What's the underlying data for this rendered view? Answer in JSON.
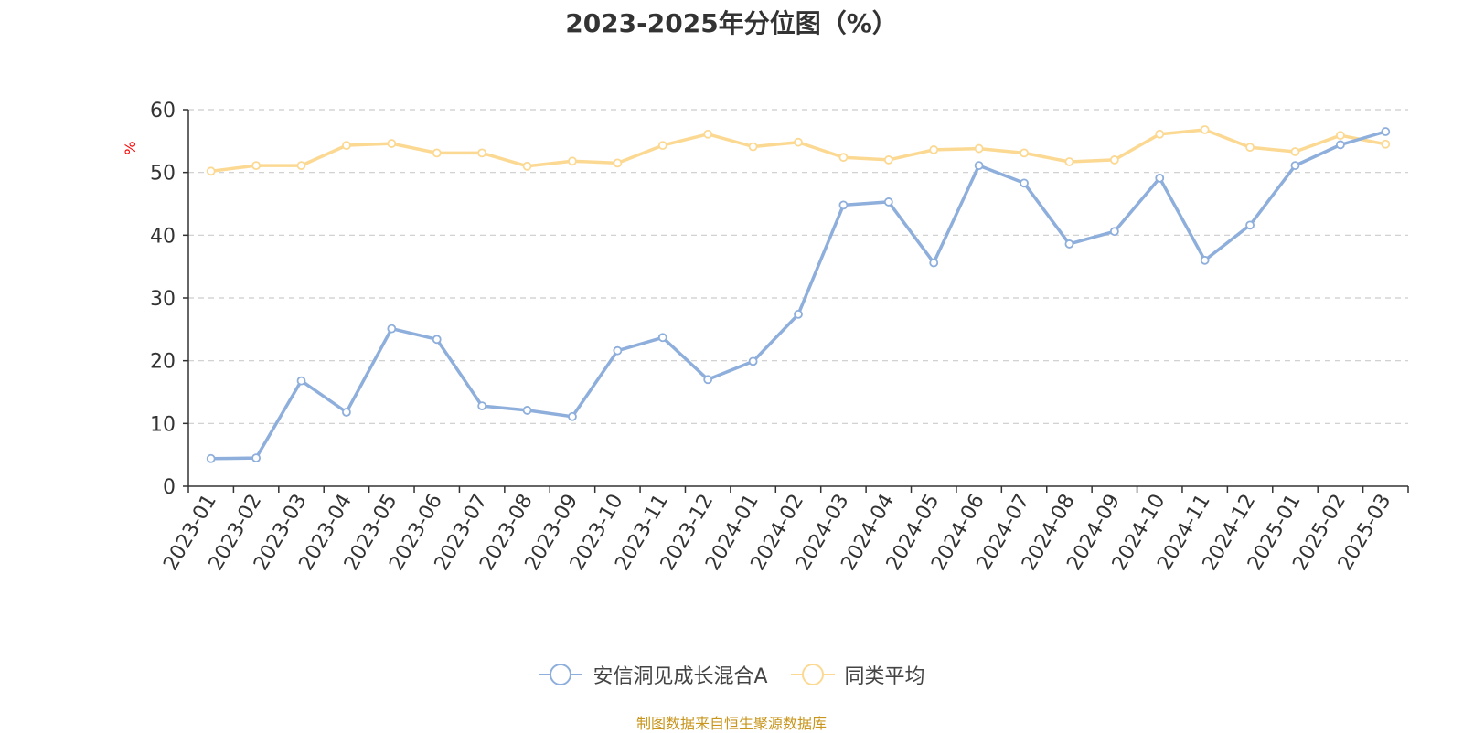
{
  "chart_data": {
    "type": "line",
    "title": "2023-2025年分位图（%）",
    "ylabel": "%",
    "xlabel": "",
    "ylim": [
      0,
      60
    ],
    "yticks": [
      0,
      10,
      20,
      30,
      40,
      50,
      60
    ],
    "grid": true,
    "legend_position": "bottom",
    "categories": [
      "2023-01",
      "2023-02",
      "2023-03",
      "2023-04",
      "2023-05",
      "2023-06",
      "2023-07",
      "2023-08",
      "2023-09",
      "2023-10",
      "2023-11",
      "2023-12",
      "2024-01",
      "2024-02",
      "2024-03",
      "2024-04",
      "2024-05",
      "2024-06",
      "2024-07",
      "2024-08",
      "2024-09",
      "2024-10",
      "2024-11",
      "2024-12",
      "2025-01",
      "2025-02",
      "2025-03"
    ],
    "series": [
      {
        "name": "安信洞见成长混合A",
        "color": "#8eaedb",
        "values": [
          4.4,
          4.5,
          16.8,
          11.8,
          25.1,
          23.4,
          12.8,
          12.1,
          11.1,
          21.6,
          23.7,
          17.0,
          19.9,
          27.4,
          44.8,
          45.3,
          35.6,
          51.1,
          48.3,
          38.6,
          40.6,
          49.1,
          36.0,
          41.6,
          51.1,
          54.4,
          56.5
        ]
      },
      {
        "name": "同类平均",
        "color": "#fcd993",
        "values": [
          50.2,
          51.1,
          51.1,
          54.3,
          54.6,
          53.1,
          53.1,
          51.0,
          51.8,
          51.5,
          54.3,
          56.1,
          54.1,
          54.8,
          52.4,
          52.0,
          53.6,
          53.8,
          53.1,
          51.7,
          52.0,
          56.1,
          56.8,
          54.0,
          53.3,
          55.9,
          54.5
        ]
      }
    ],
    "source": "制图数据来自恒生聚源数据库"
  }
}
